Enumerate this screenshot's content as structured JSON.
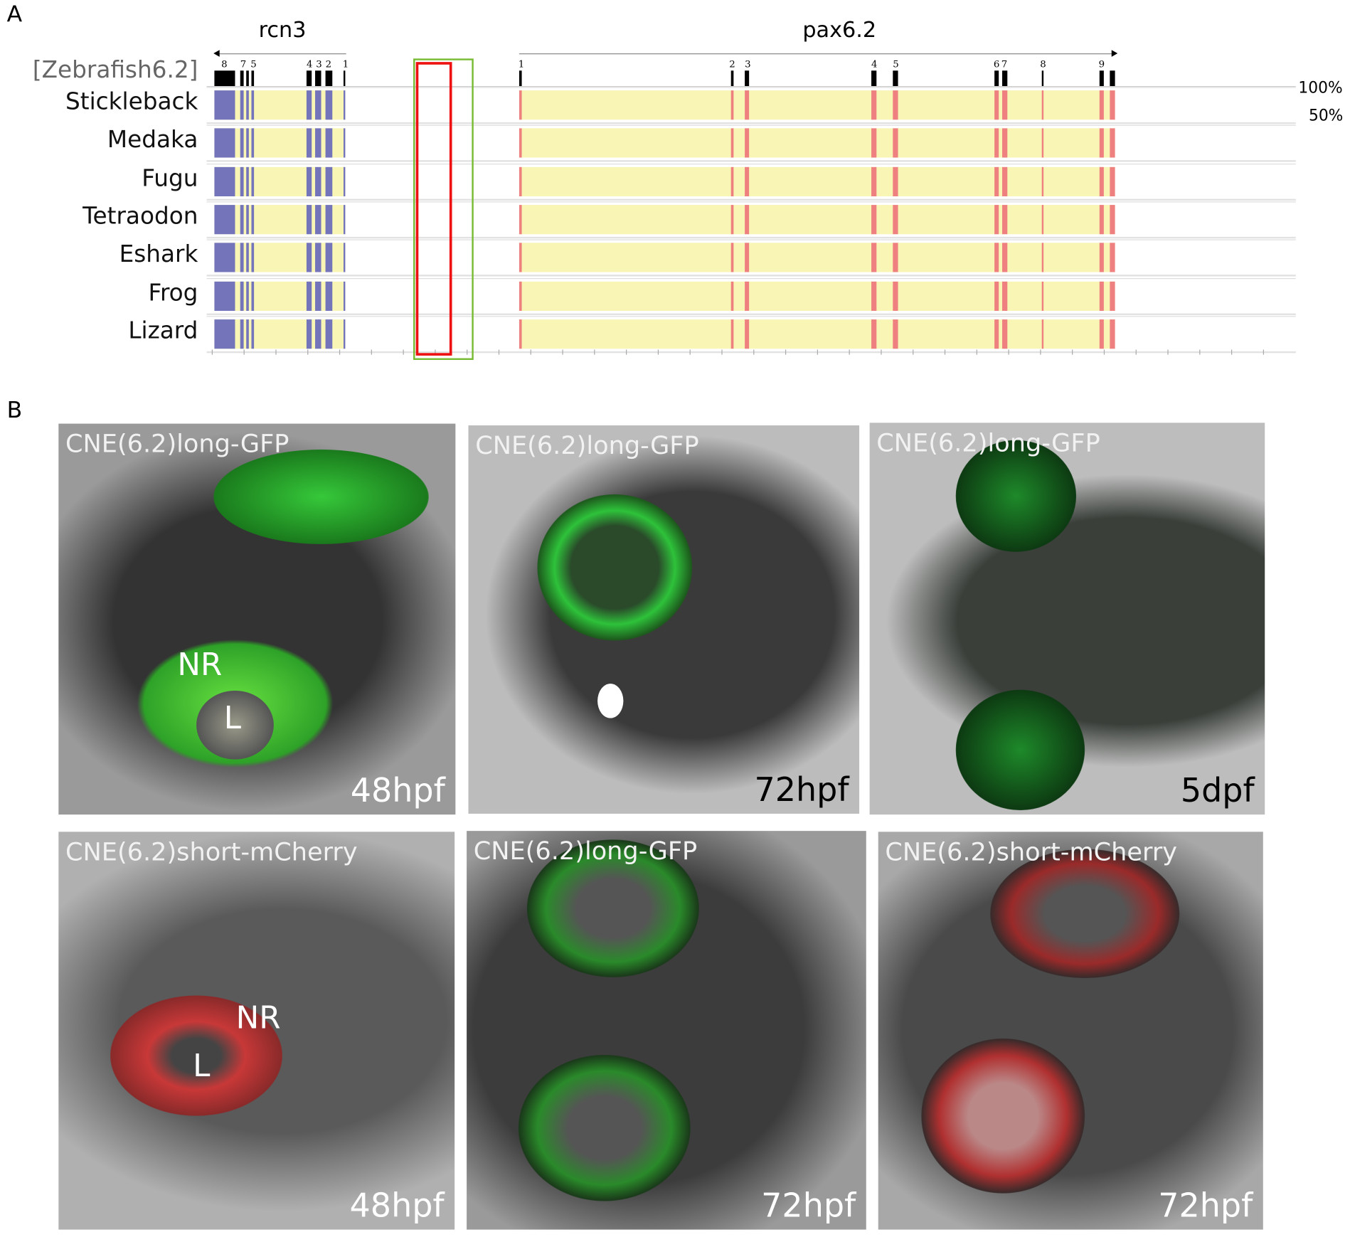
{
  "panel_a": {
    "label": "A",
    "genes": [
      {
        "name": "rcn3",
        "direction": "left"
      },
      {
        "name": "pax6.2",
        "direction": "right"
      }
    ],
    "reference": "[Zebrafish6.2]",
    "species": [
      "Stickleback",
      "Medaka",
      "Fugu",
      "Tetraodon",
      "Eshark",
      "Frog",
      "Lizard"
    ],
    "rcn3_exons": [
      "8",
      "7",
      "5",
      "4",
      "3",
      "2",
      "1"
    ],
    "pax_exons": [
      "1",
      "2",
      "3",
      "4",
      "5",
      "6",
      "7",
      "8",
      "9"
    ],
    "scale_top": "100%",
    "scale_mid": "50%",
    "colors": {
      "coding": "#7474bb",
      "utr": "#f8f5b5",
      "cne": "#ef8080",
      "highlight_outer": "#77bb33",
      "highlight_inner": "#ee1111"
    }
  },
  "panel_b": {
    "label": "B",
    "images": [
      {
        "title": "CNE(6.2)long-GFP",
        "time": "48hpf",
        "marks": [
          "NR",
          "L"
        ]
      },
      {
        "title": "CNE(6.2)long-GFP",
        "time": "72hpf"
      },
      {
        "title": "CNE(6.2)long-GFP",
        "time": "5dpf"
      },
      {
        "title": "CNE(6.2)short-mCherry",
        "time": "48hpf",
        "marks": [
          "NR",
          "L"
        ]
      },
      {
        "title": "CNE(6.2)long-GFP",
        "time": "72hpf"
      },
      {
        "title": "CNE(6.2)short-mCherry",
        "time": "72hpf"
      }
    ]
  }
}
